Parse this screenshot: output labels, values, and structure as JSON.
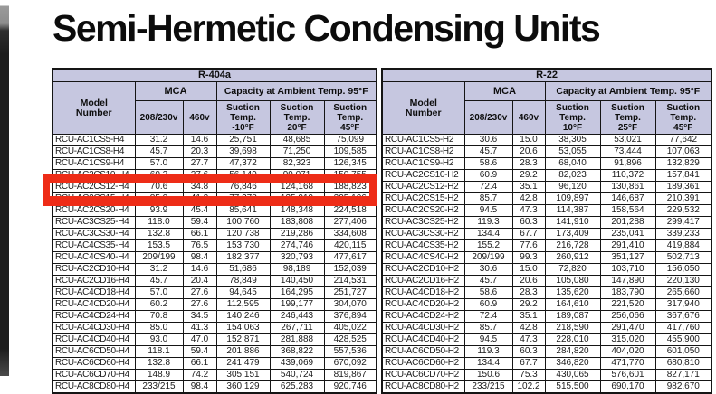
{
  "page": {
    "title": "Semi-Hermetic Condensing Units"
  },
  "highlight": {
    "color": "#ee2c17",
    "highlighted_model": "RCU-AC2CS15-H4"
  },
  "tables": [
    {
      "refrigerant": "R-404a",
      "headers": {
        "model": "Model\nNumber",
        "mca": "MCA",
        "capacity": "Capacity at Ambient Temp. 95°F",
        "voltages": [
          "208/230v",
          "460v"
        ],
        "suction_temps": [
          "Suction\nTemp.\n-10°F",
          "Suction\nTemp.\n20°F",
          "Suction\nTemp.\n45°F"
        ]
      },
      "rows": [
        [
          "RCU-AC1CS5-H4",
          "31.2",
          "14.6",
          "25,751",
          "48,685",
          "75,099"
        ],
        [
          "RCU-AC1CS8-H4",
          "45.7",
          "20.3",
          "39,698",
          "71,250",
          "109,585"
        ],
        [
          "RCU-AC1CS9-H4",
          "57.0",
          "27.7",
          "47,372",
          "82,323",
          "126,345"
        ],
        [
          "RCU-AC2CS10-H4",
          "60.2",
          "27.6",
          "56,149",
          "99,071",
          "150,755"
        ],
        [
          "RCU-AC2CS12-H4",
          "70.6",
          "34.8",
          "76,846",
          "124,168",
          "188,823"
        ],
        [
          "RCU-AC2CS15-H4",
          "85.0",
          "41.3",
          "77,278",
          "135,019",
          "205,106"
        ],
        [
          "RCU-AC2CS20-H4",
          "93.9",
          "45.4",
          "85,641",
          "148,348",
          "224,518"
        ],
        [
          "RCU-AC3CS25-H4",
          "118.0",
          "59.4",
          "100,760",
          "183,808",
          "277,406"
        ],
        [
          "RCU-AC3CS30-H4",
          "132.8",
          "66.1",
          "120,738",
          "219,286",
          "334,608"
        ],
        [
          "RCU-AC4CS35-H4",
          "153.5",
          "76.5",
          "153,730",
          "274,746",
          "420,115"
        ],
        [
          "RCU-AC4CS40-H4",
          "209/199",
          "98.4",
          "182,377",
          "320,793",
          "477,617"
        ],
        [
          "RCU-AC2CD10-H4",
          "31.2",
          "14.6",
          "51,686",
          "98,189",
          "152,039"
        ],
        [
          "RCU-AC2CD16-H4",
          "45.7",
          "20.4",
          "78,849",
          "140,450",
          "214,531"
        ],
        [
          "RCU-AC4CD18-H4",
          "57.0",
          "27.6",
          "94,645",
          "164,295",
          "251,727"
        ],
        [
          "RCU-AC4CD20-H4",
          "60.2",
          "27.6",
          "112,595",
          "199,177",
          "304,070"
        ],
        [
          "RCU-AC4CD24-H4",
          "70.8",
          "34.5",
          "140,246",
          "246,443",
          "376,894"
        ],
        [
          "RCU-AC4CD30-H4",
          "85.0",
          "41.3",
          "154,063",
          "267,711",
          "405,022"
        ],
        [
          "RCU-AC4CD40-H4",
          "93.0",
          "47.0",
          "152,871",
          "281,888",
          "428,525"
        ],
        [
          "RCU-AC6CD50-H4",
          "118.1",
          "59.4",
          "201,886",
          "368,822",
          "557,536"
        ],
        [
          "RCU-AC6CD60-H4",
          "132.8",
          "66.1",
          "241,479",
          "439,069",
          "670,092"
        ],
        [
          "RCU-AC6CD70-H4",
          "148.9",
          "74.2",
          "305,151",
          "540,724",
          "819,867"
        ],
        [
          "RCU-AC8CD80-H4",
          "233/215",
          "98.4",
          "360,129",
          "625,283",
          "920,746"
        ]
      ]
    },
    {
      "refrigerant": "R-22",
      "headers": {
        "model": "Model\nNumber",
        "mca": "MCA",
        "capacity": "Capacity at Ambient Temp. 95°F",
        "voltages": [
          "208/230v",
          "460v"
        ],
        "suction_temps": [
          "Suction\nTemp.\n10°F",
          "Suction\nTemp.\n25°F",
          "Suction\nTemp.\n45°F"
        ]
      },
      "rows": [
        [
          "RCU-AC1CS5-H2",
          "30.6",
          "15.0",
          "38,305",
          "53,021",
          "77,642"
        ],
        [
          "RCU-AC1CS8-H2",
          "45.7",
          "20.6",
          "53,055",
          "73,444",
          "107,063"
        ],
        [
          "RCU-AC1CS9-H2",
          "58.6",
          "28.3",
          "68,040",
          "91,896",
          "132,829"
        ],
        [
          "RCU-AC2CS10-H2",
          "60.9",
          "29.2",
          "82,023",
          "110,372",
          "157,841"
        ],
        [
          "RCU-AC2CS12-H2",
          "72.4",
          "35.1",
          "96,120",
          "130,861",
          "189,361"
        ],
        [
          "RCU-AC2CS15-H2",
          "85.7",
          "42.8",
          "109,897",
          "146,687",
          "210,391"
        ],
        [
          "RCU-AC2CS20-H2",
          "94.5",
          "47.3",
          "114,387",
          "158,564",
          "229,532"
        ],
        [
          "RCU-AC3CS25-H2",
          "119.3",
          "60.3",
          "141,910",
          "201,288",
          "299,417"
        ],
        [
          "RCU-AC3CS30-H2",
          "134.4",
          "67.7",
          "173,409",
          "235,041",
          "339,233"
        ],
        [
          "RCU-AC4CS35-H2",
          "155.2",
          "77.6",
          "216,728",
          "291,410",
          "419,884"
        ],
        [
          "RCU-AC4CS40-H2",
          "209/199",
          "99.3",
          "260,912",
          "351,127",
          "502,713"
        ],
        [
          "RCU-AC2CD10-H2",
          "30.6",
          "15.0",
          "72,820",
          "103,710",
          "156,050"
        ],
        [
          "RCU-AC2CD16-H2",
          "45.7",
          "20.6",
          "105,080",
          "147,890",
          "220,130"
        ],
        [
          "RCU-AC4CD18-H2",
          "58.6",
          "28.3",
          "135,620",
          "183,790",
          "265,660"
        ],
        [
          "RCU-AC4CD20-H2",
          "60.9",
          "29.2",
          "164,610",
          "221,520",
          "317,940"
        ],
        [
          "RCU-AC4CD24-H2",
          "72.4",
          "35.1",
          "189,087",
          "256,066",
          "367,676"
        ],
        [
          "RCU-AC4CD30-H2",
          "85.7",
          "42.8",
          "218,590",
          "291,470",
          "417,760"
        ],
        [
          "RCU-AC4CD40-H2",
          "94.5",
          "47.3",
          "228,010",
          "315,020",
          "455,900"
        ],
        [
          "RCU-AC6CD50-H2",
          "119.3",
          "60.3",
          "284,820",
          "404,020",
          "601,050"
        ],
        [
          "RCU-AC6CD60-H2",
          "134.4",
          "67.7",
          "346,820",
          "471,770",
          "680,810"
        ],
        [
          "RCU-AC6CD70-H2",
          "150.6",
          "75.3",
          "430,065",
          "576,601",
          "827,171"
        ],
        [
          "RCU-AC8CD80-H2",
          "233/215",
          "102.2",
          "515,500",
          "690,170",
          "982,670"
        ]
      ]
    }
  ]
}
